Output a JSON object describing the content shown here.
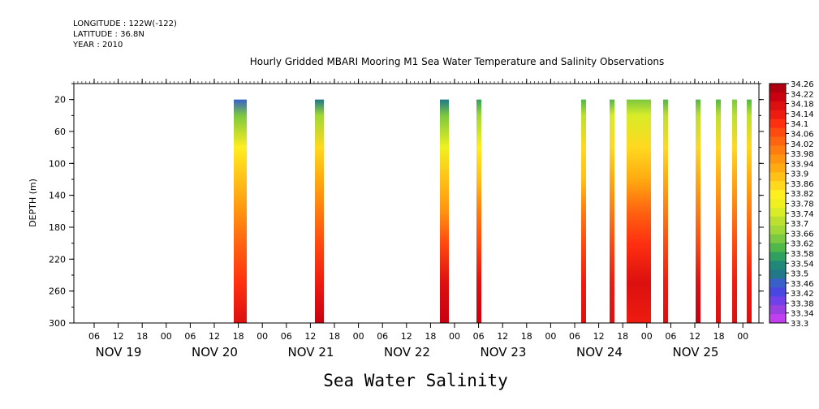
{
  "header": {
    "longitude": "LONGITUDE : 122W(-122)",
    "latitude": "LATITUDE : 36.8N",
    "year": "YEAR : 2010"
  },
  "chart_data": {
    "type": "heatmap",
    "title": "Hourly Gridded MBARI Mooring M1 Sea Water Temperature and Salinity Observations",
    "xlabel": "Sea Water Salinity",
    "ylabel": "DEPTH (m)",
    "y_ticks": [
      20,
      60,
      100,
      140,
      180,
      220,
      260,
      300
    ],
    "ylim": [
      300,
      0
    ],
    "x_hour_labels": [
      "06",
      "12",
      "18",
      "00",
      "06",
      "12",
      "18",
      "00",
      "06",
      "12",
      "18",
      "00",
      "06",
      "12",
      "18",
      "00",
      "06",
      "12",
      "18",
      "00",
      "06",
      "12",
      "18",
      "00",
      "06",
      "12",
      "18",
      "00"
    ],
    "day_labels": [
      "NOV 19",
      "NOV 20",
      "NOV 21",
      "NOV 22",
      "NOV 23",
      "NOV 24",
      "NOV 25"
    ],
    "colorbar_levels": [
      "34.26",
      "34.22",
      "34.18",
      "34.14",
      "34.1",
      "34.06",
      "34.02",
      "33.98",
      "33.94",
      "33.9",
      "33.86",
      "33.82",
      "33.78",
      "33.74",
      "33.7",
      "33.66",
      "33.62",
      "33.58",
      "33.54",
      "33.5",
      "33.46",
      "33.42",
      "33.38",
      "33.34",
      "33.3"
    ],
    "colorbar_colors": [
      "#b00010",
      "#c80010",
      "#dc1010",
      "#ee1c10",
      "#ff3010",
      "#ff4a10",
      "#ff6410",
      "#ff7c10",
      "#ff9410",
      "#ffaa10",
      "#ffc018",
      "#ffd820",
      "#ffee20",
      "#f0f020",
      "#d8ec28",
      "#bce030",
      "#a0d838",
      "#7cc840",
      "#50b848",
      "#30a060",
      "#208878",
      "#207888",
      "#3860c8",
      "#4848e0",
      "#7040e8",
      "#9840e0",
      "#c040f0"
    ],
    "series": [
      {
        "time": "Nov 20 18h",
        "profile": [
          33.44,
          33.62,
          33.82,
          33.9,
          33.98,
          34.06,
          34.14,
          34.22
        ]
      },
      {
        "time": "Nov 21 14h",
        "profile": [
          33.46,
          33.64,
          33.84,
          33.92,
          34.0,
          34.08,
          34.18,
          34.26
        ]
      },
      {
        "time": "Nov 22 18h",
        "profile": [
          33.48,
          33.62,
          33.8,
          33.88,
          33.98,
          34.08,
          34.2,
          34.24
        ]
      },
      {
        "time": "Nov 23 05h",
        "profile": [
          33.52,
          33.64,
          33.82,
          33.9,
          34.0,
          34.1,
          34.2,
          34.24
        ]
      },
      {
        "time": "Nov 24 07h",
        "profile": [
          33.56,
          33.68,
          33.84,
          33.9,
          34.0,
          34.1,
          34.18,
          34.22
        ]
      },
      {
        "time": "Nov 24 14h",
        "profile": [
          33.58,
          33.72,
          33.84,
          33.92,
          34.0,
          34.1,
          34.18,
          34.22
        ]
      },
      {
        "time": "Nov 24 18-22h",
        "profile": [
          33.6,
          33.74,
          33.86,
          33.94,
          34.04,
          34.14,
          34.22,
          34.18
        ]
      },
      {
        "time": "Nov 25 04h",
        "profile": [
          33.58,
          33.7,
          33.84,
          33.92,
          34.0,
          34.1,
          34.18,
          34.22
        ]
      },
      {
        "time": "Nov 25 12h",
        "profile": [
          33.56,
          33.68,
          33.84,
          33.92,
          34.0,
          34.1,
          34.2,
          34.24
        ]
      },
      {
        "time": "Nov 25 16h",
        "profile": [
          33.58,
          33.7,
          33.84,
          33.92,
          34.02,
          34.1,
          34.18,
          34.22
        ]
      },
      {
        "time": "Nov 25 20h",
        "profile": [
          33.6,
          33.7,
          33.84,
          33.92,
          34.0,
          34.1,
          34.18,
          34.22
        ]
      },
      {
        "time": "Nov 26 00h",
        "profile": [
          33.58,
          33.7,
          33.84,
          33.92,
          34.0,
          34.1,
          34.18,
          34.22
        ]
      }
    ]
  }
}
